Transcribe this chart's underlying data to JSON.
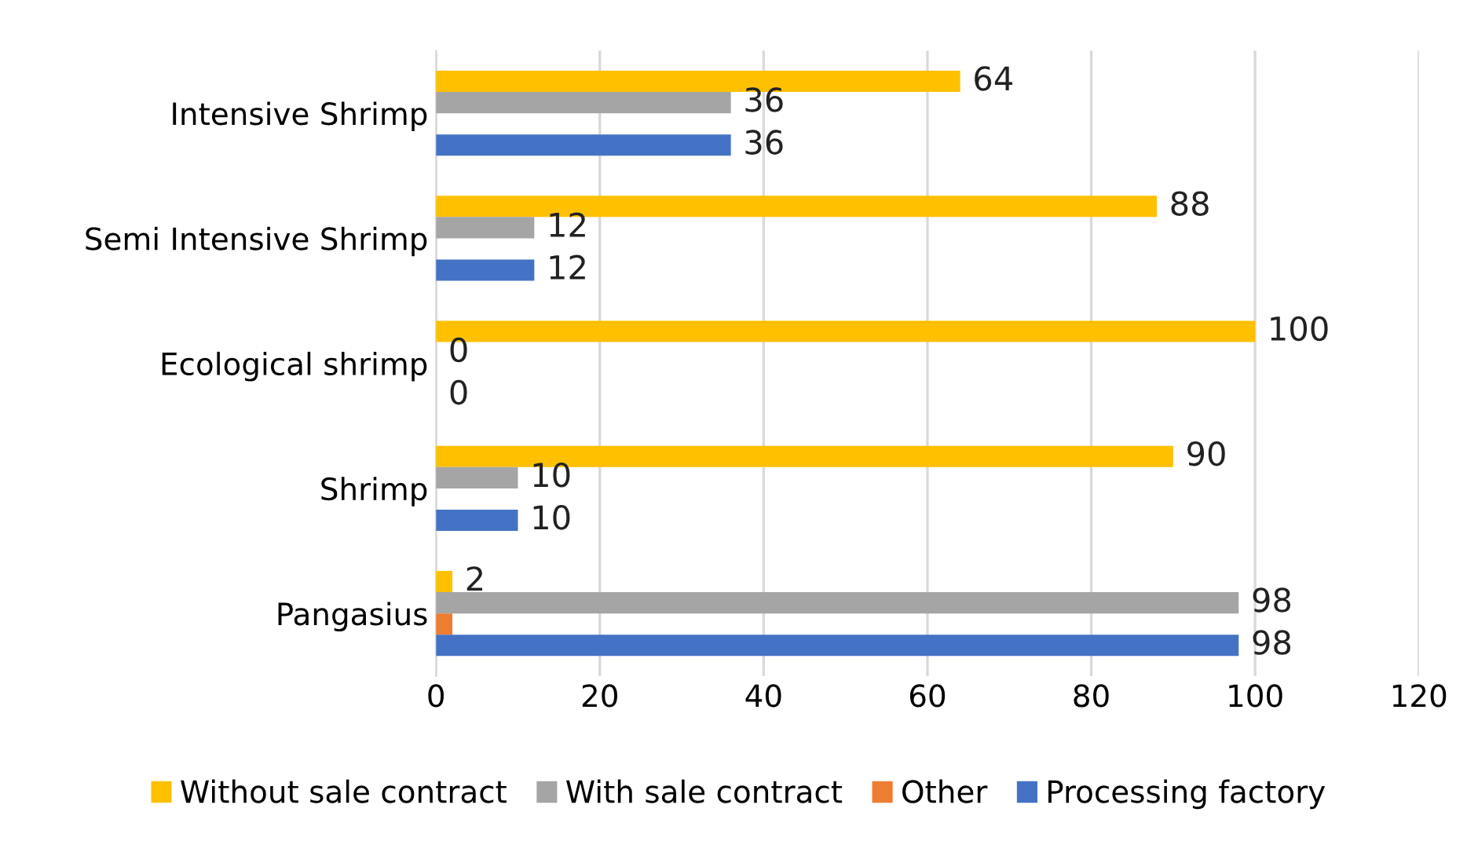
{
  "chart_data": {
    "type": "bar",
    "orientation": "horizontal",
    "categories": [
      "Intensive Shrimp",
      "Semi Intensive Shrimp",
      "Ecological shrimp",
      "Shrimp",
      "Pangasius"
    ],
    "series": [
      {
        "name": "Without sale contract",
        "color": "#ffc000",
        "values": [
          64,
          88,
          100,
          90,
          2
        ],
        "value_labels": [
          "64",
          "88",
          "100",
          "90",
          "2"
        ]
      },
      {
        "name": "With sale contract",
        "color": "#a5a5a5",
        "values": [
          36,
          12,
          0,
          10,
          98
        ],
        "value_labels": [
          "36",
          "12",
          "0",
          "10",
          "98"
        ]
      },
      {
        "name": "Other",
        "color": "#ed7d31",
        "values": [
          null,
          null,
          null,
          null,
          2
        ],
        "value_labels": [
          null,
          null,
          null,
          null,
          null
        ]
      },
      {
        "name": "Processing factory",
        "color": "#4472c4",
        "values": [
          36,
          12,
          0,
          10,
          98
        ],
        "value_labels": [
          "36",
          "12",
          "0",
          "10",
          "98"
        ]
      }
    ],
    "xlim": [
      0,
      120
    ],
    "xticks": [
      0,
      20,
      40,
      60,
      80,
      100,
      120
    ],
    "grid": "x",
    "legend": "bottom"
  }
}
